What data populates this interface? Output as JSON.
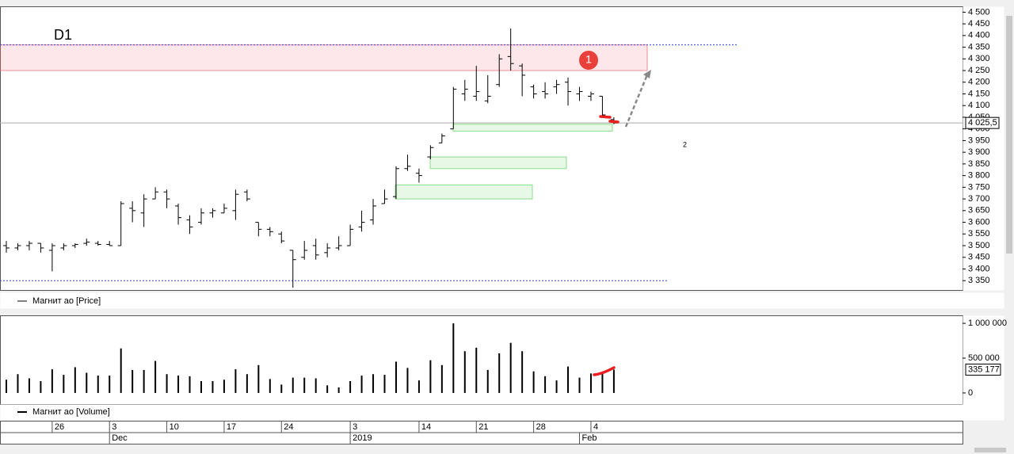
{
  "chart_data": [
    {
      "type": "ohlc",
      "label": "D1",
      "legend": "Магнит ао [Price]",
      "color": "#000000",
      "open": [
        3500,
        3490,
        3500,
        3510,
        3480,
        3490,
        3500,
        3510,
        3510,
        3505,
        3500,
        3660,
        3640,
        3700,
        3730,
        3670,
        3610,
        3600,
        3640,
        3640,
        3650,
        3730,
        3600,
        3570,
        3550,
        3480,
        3450,
        3500,
        3470,
        3490,
        3500,
        3580,
        3610,
        3680,
        3710,
        3830,
        3810,
        3880,
        3940,
        4000,
        4150,
        4140,
        4120,
        4190,
        4310,
        4270,
        4180,
        4160,
        4180,
        4200,
        4150,
        4140,
        4140,
        4040
      ],
      "high": [
        3520,
        3510,
        3520,
        3510,
        3510,
        3510,
        3510,
        3530,
        3520,
        3520,
        3690,
        3690,
        3720,
        3750,
        3740,
        3680,
        3630,
        3660,
        3660,
        3680,
        3740,
        3740,
        3600,
        3580,
        3560,
        3480,
        3520,
        3530,
        3510,
        3540,
        3590,
        3650,
        3700,
        3740,
        3840,
        3890,
        3830,
        3930,
        3980,
        4180,
        4210,
        4270,
        4230,
        4320,
        4430,
        4280,
        4190,
        4200,
        4210,
        4220,
        4180,
        4160,
        4140,
        4050
      ],
      "low": [
        3470,
        3480,
        3480,
        3470,
        3390,
        3480,
        3490,
        3500,
        3500,
        3500,
        3500,
        3600,
        3580,
        3700,
        3660,
        3590,
        3550,
        3590,
        3620,
        3640,
        3610,
        3690,
        3540,
        3540,
        3510,
        3320,
        3440,
        3440,
        3450,
        3480,
        3500,
        3560,
        3590,
        3680,
        3700,
        3820,
        3770,
        3870,
        3940,
        4000,
        4120,
        4120,
        4110,
        4180,
        4250,
        4140,
        4130,
        4130,
        4150,
        4100,
        4120,
        4120,
        4050,
        4020
      ],
      "close": [
        3490,
        3500,
        3510,
        3490,
        3500,
        3500,
        3505,
        3515,
        3505,
        3500,
        3680,
        3650,
        3700,
        3730,
        3700,
        3620,
        3580,
        3640,
        3650,
        3660,
        3720,
        3700,
        3570,
        3560,
        3520,
        3440,
        3480,
        3460,
        3490,
        3500,
        3570,
        3600,
        3670,
        3700,
        3830,
        3840,
        3800,
        3920,
        3970,
        4170,
        4170,
        4160,
        4140,
        4300,
        4280,
        4230,
        4150,
        4150,
        4190,
        4160,
        4160,
        4150,
        4060,
        4025.5
      ],
      "ylim": [
        3310,
        4525
      ],
      "yticks": [
        {
          "value": 4500,
          "label": "4 500"
        },
        {
          "value": 4450,
          "label": "4 450"
        },
        {
          "value": 4400,
          "label": "4 400"
        },
        {
          "value": 4350,
          "label": "4 350"
        },
        {
          "value": 4300,
          "label": "4 300"
        },
        {
          "value": 4250,
          "label": "4 250"
        },
        {
          "value": 4200,
          "label": "4 200"
        },
        {
          "value": 4150,
          "label": "4 150"
        },
        {
          "value": 4100,
          "label": "4 100"
        },
        {
          "value": 4050,
          "label": "4 050"
        },
        {
          "value": 4000,
          "label": "4 000"
        },
        {
          "value": 3950,
          "label": "3 950"
        },
        {
          "value": 3900,
          "label": "3 900"
        },
        {
          "value": 3850,
          "label": "3 850"
        },
        {
          "value": 3800,
          "label": "3 800"
        },
        {
          "value": 3750,
          "label": "3 750"
        },
        {
          "value": 3700,
          "label": "3 700"
        },
        {
          "value": 3650,
          "label": "3 650"
        },
        {
          "value": 3600,
          "label": "3 600"
        },
        {
          "value": 3550,
          "label": "3 550"
        },
        {
          "value": 3500,
          "label": "3 500"
        },
        {
          "value": 3450,
          "label": "3 450"
        },
        {
          "value": 3400,
          "label": "3 400"
        },
        {
          "value": 3350,
          "label": "3 350"
        }
      ],
      "last": {
        "value": 4025.5,
        "label": "4 025,5"
      },
      "levels": [
        4360,
        3350
      ],
      "zones": [
        {
          "low": 4250,
          "high": 4360,
          "color": "#f06070"
        },
        {
          "low": 3990,
          "high": 4020,
          "color": "#60d060"
        },
        {
          "low": 3830,
          "high": 3880,
          "color": "#60d060"
        },
        {
          "low": 3700,
          "high": 3760,
          "color": "#60d060"
        }
      ],
      "annotations": [
        "1",
        "2"
      ]
    },
    {
      "type": "bar",
      "legend": "Магнит ао [Volume]",
      "color": "#000000",
      "values": [
        190000,
        270000,
        210000,
        170000,
        340000,
        260000,
        370000,
        290000,
        250000,
        250000,
        640000,
        330000,
        330000,
        460000,
        270000,
        250000,
        240000,
        170000,
        170000,
        190000,
        340000,
        270000,
        400000,
        200000,
        120000,
        220000,
        220000,
        210000,
        110000,
        80000,
        170000,
        250000,
        270000,
        260000,
        450000,
        360000,
        180000,
        470000,
        400000,
        1000000,
        600000,
        650000,
        330000,
        570000,
        720000,
        600000,
        310000,
        240000,
        180000,
        380000,
        220000,
        280000,
        300000,
        335177
      ],
      "ylim": [
        -160000,
        1115000
      ],
      "yticks": [
        {
          "value": 1000000,
          "label": "1 000 000"
        },
        {
          "value": 500000,
          "label": "500 000"
        },
        0
      ],
      "last": {
        "value": 335177,
        "label": "335 177"
      },
      "xticks": [
        {
          "value": 4,
          "label": "26"
        },
        {
          "value": 9,
          "label": "3"
        },
        {
          "value": 14,
          "label": "10"
        },
        {
          "value": 19,
          "label": "17"
        },
        {
          "value": 24,
          "label": "24"
        },
        {
          "value": 30,
          "label": "3"
        },
        {
          "value": 36,
          "label": "14"
        },
        {
          "value": 41,
          "label": "21"
        },
        {
          "value": 46,
          "label": "28"
        },
        {
          "value": 51,
          "label": "4"
        }
      ],
      "months": [
        {
          "value": 9,
          "label": "Dec"
        },
        {
          "value": 30,
          "label": "2019"
        },
        {
          "value": 50,
          "label": "Feb"
        }
      ]
    }
  ]
}
